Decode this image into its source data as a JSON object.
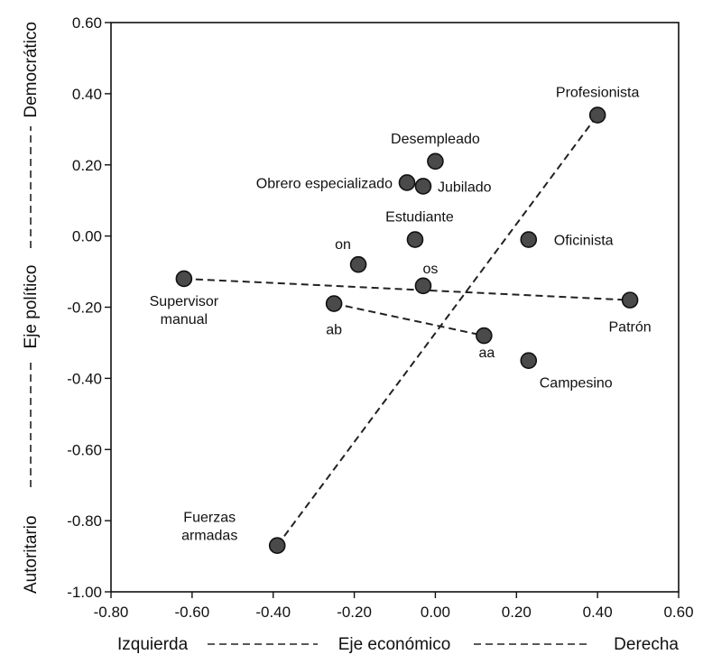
{
  "chart_data": {
    "type": "scatter",
    "xlim": [
      -0.8,
      0.6
    ],
    "ylim": [
      -1.0,
      0.6
    ],
    "x_ticks": [
      "-0.80",
      "-0.60",
      "-0.40",
      "-0.20",
      "0.00",
      "0.20",
      "0.40",
      "0.60"
    ],
    "y_ticks": [
      "0.60",
      "0.40",
      "0.20",
      "0.00",
      "-0.20",
      "-0.40",
      "-0.60",
      "-0.80",
      "-1.00"
    ],
    "xlabel": {
      "left": "Izquierda",
      "center": "Eje económico",
      "right": "Derecha"
    },
    "ylabel": {
      "bottom": "Autoritario",
      "center": "Eje político",
      "top": "Democrático"
    },
    "points": [
      {
        "label": [
          "Profesionista"
        ],
        "x": 0.4,
        "y": 0.34
      },
      {
        "label": [
          "Desempleado"
        ],
        "x": 0.0,
        "y": 0.21
      },
      {
        "label": [
          "Obrero especializado"
        ],
        "x": -0.07,
        "y": 0.15
      },
      {
        "label": [
          "Jubilado"
        ],
        "x": -0.03,
        "y": 0.14
      },
      {
        "label": [
          "Estudiante"
        ],
        "x": -0.05,
        "y": -0.01
      },
      {
        "label": [
          "Oficinista"
        ],
        "x": 0.23,
        "y": -0.01
      },
      {
        "label": [
          "on"
        ],
        "x": -0.19,
        "y": -0.08
      },
      {
        "label": [
          "os"
        ],
        "x": -0.03,
        "y": -0.14
      },
      {
        "label": [
          "Supervisor",
          "manual"
        ],
        "x": -0.62,
        "y": -0.12
      },
      {
        "label": [
          "ab"
        ],
        "x": -0.25,
        "y": -0.19
      },
      {
        "label": [
          "Patrón"
        ],
        "x": 0.48,
        "y": -0.18
      },
      {
        "label": [
          "aa"
        ],
        "x": 0.12,
        "y": -0.28
      },
      {
        "label": [
          "Campesino"
        ],
        "x": 0.23,
        "y": -0.35
      },
      {
        "label": [
          "Fuerzas",
          "armadas"
        ],
        "x": -0.39,
        "y": -0.87
      }
    ],
    "connectors": [
      {
        "from": "Fuerzas armadas",
        "to": "Profesionista"
      },
      {
        "from": "Supervisor manual",
        "to": "Patrón"
      },
      {
        "from": "ab",
        "to": "aa"
      }
    ]
  }
}
